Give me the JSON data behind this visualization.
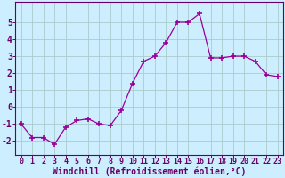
{
  "x": [
    0,
    1,
    2,
    3,
    4,
    5,
    6,
    7,
    8,
    9,
    10,
    11,
    12,
    13,
    14,
    15,
    16,
    17,
    18,
    19,
    20,
    21,
    22,
    23
  ],
  "y": [
    -1,
    -1.8,
    -1.8,
    -2.2,
    -1.2,
    -0.8,
    -0.7,
    -1.0,
    -1.1,
    -0.2,
    1.4,
    2.7,
    3.0,
    3.8,
    5.0,
    5.0,
    5.5,
    2.9,
    2.9,
    3.0,
    3.0,
    2.7,
    1.9,
    1.8
  ],
  "line_color": "#990099",
  "marker": "+",
  "marker_size": 4,
  "bg_color": "#cceeff",
  "grid_color": "#aacccc",
  "axis_color": "#660066",
  "xlabel": "Windchill (Refroidissement éolien,°C)",
  "xlabel_fontsize": 7,
  "ytick_labels": [
    "-2",
    "-1",
    "0",
    "1",
    "2",
    "3",
    "4",
    "5"
  ],
  "yticks": [
    -2,
    -1,
    0,
    1,
    2,
    3,
    4,
    5
  ],
  "xticks": [
    0,
    1,
    2,
    3,
    4,
    5,
    6,
    7,
    8,
    9,
    10,
    11,
    12,
    13,
    14,
    15,
    16,
    17,
    18,
    19,
    20,
    21,
    22,
    23
  ],
  "ylim": [
    -2.8,
    6.2
  ],
  "xlim": [
    -0.5,
    23.5
  ],
  "tick_fontsize": 6,
  "tick_color": "#660066"
}
